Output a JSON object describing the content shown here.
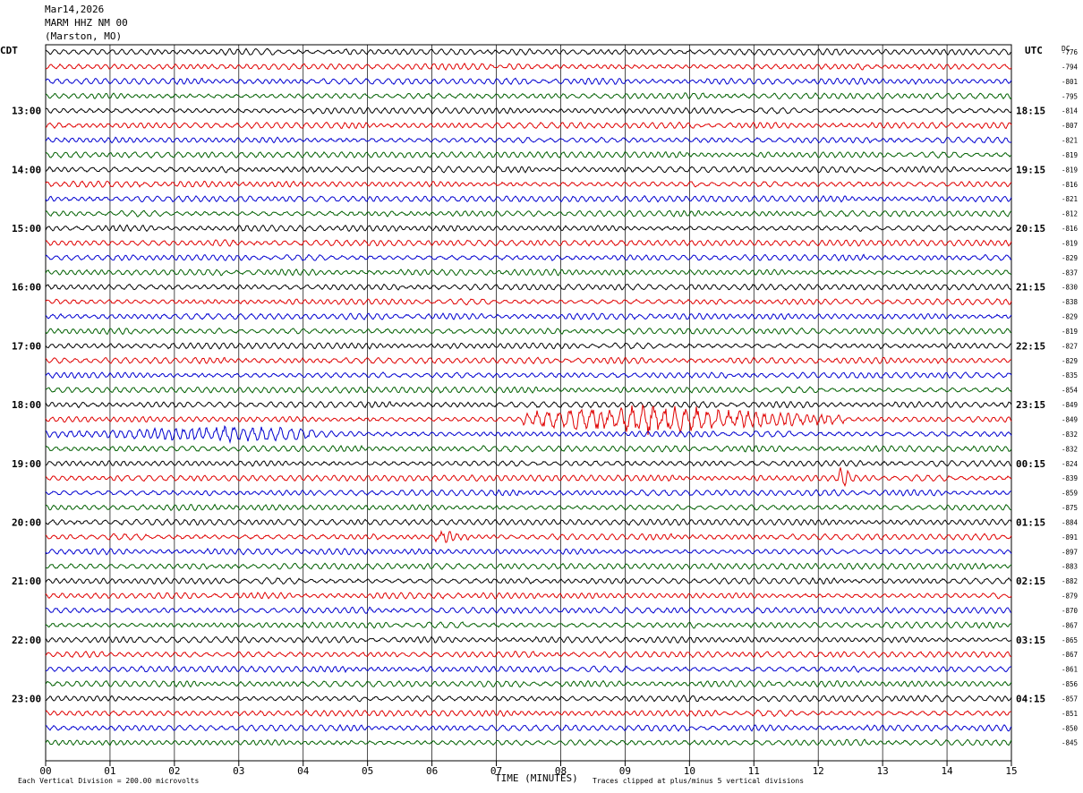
{
  "header": {
    "date": "Mar14,2026",
    "station": "MARM HHZ NM 00",
    "location": "(Marston, MO)"
  },
  "left_tz": "CDT",
  "right_tz": "UTC",
  "dc_label": "DC",
  "footer": {
    "scale_note": "Each Vertical Division =  200.00 microvolts",
    "xlabel": "TIME (MINUTES)",
    "clip_note": "Traces clipped at plus/minus 5 vertical divisions"
  },
  "colors": {
    "trace_cycle": [
      "#000000",
      "#e00000",
      "#0000d0",
      "#006000"
    ],
    "grid": "#000000"
  },
  "chart_data": {
    "type": "line",
    "title": "",
    "xlabel": "TIME (MINUTES)",
    "x_ticks": [
      "00",
      "01",
      "02",
      "03",
      "04",
      "05",
      "06",
      "07",
      "08",
      "09",
      "10",
      "11",
      "12",
      "13",
      "14",
      "15"
    ],
    "xlim": [
      0,
      15
    ],
    "trace_count": 48,
    "left_hour_labels": [
      "13:00",
      "14:00",
      "15:00",
      "16:00",
      "17:00",
      "18:00",
      "19:00",
      "20:00",
      "21:00",
      "22:00",
      "23:00"
    ],
    "right_hour_labels": [
      "18:15",
      "19:15",
      "20:15",
      "21:15",
      "22:15",
      "23:15",
      "00:15",
      "01:15",
      "02:15",
      "03:15",
      "04:15"
    ],
    "dc_offsets": [
      "-776",
      "-794",
      "-801",
      "-795",
      "-814",
      "-807",
      "-821",
      "-819",
      "-819",
      "-816",
      "-821",
      "-812",
      "-816",
      "-819",
      "-829",
      "-837",
      "-830",
      "-838",
      "-829",
      "-819",
      "-827",
      "-829",
      "-835",
      "-854",
      "-849",
      "-849",
      "-832",
      "-832",
      "-824",
      "-839",
      "-859",
      "-875",
      "-884",
      "-891",
      "-897",
      "-883",
      "-882",
      "-879",
      "-870",
      "-867",
      "-865",
      "-867",
      "-861",
      "-856",
      "-857",
      "-851",
      "-850",
      "-845"
    ],
    "events": [
      {
        "trace": 25,
        "start_min": 7.4,
        "end_min": 12.4,
        "peak_min": 9.4,
        "amplitude": 3.2
      },
      {
        "trace": 26,
        "start_min": 0.0,
        "end_min": 4.2,
        "peak_min": 2.8,
        "amplitude": 1.3
      },
      {
        "trace": 29,
        "start_min": 12.3,
        "end_min": 12.6,
        "peak_min": 12.38,
        "amplitude": 2.6
      },
      {
        "trace": 33,
        "start_min": 6.0,
        "end_min": 6.6,
        "peak_min": 6.2,
        "amplitude": 1.2
      }
    ]
  }
}
